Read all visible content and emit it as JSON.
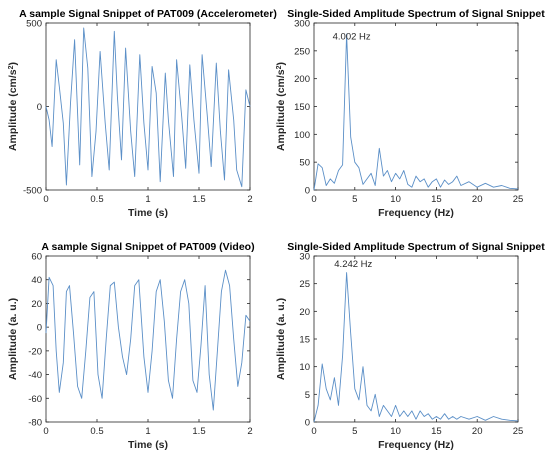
{
  "colors": {
    "line": "#5b8fc7",
    "axis": "#262626"
  },
  "chart_data": [
    {
      "type": "line",
      "title": "A sample Signal Snippet of PAT009 (Accelerometer)",
      "xlabel": "Time (s)",
      "ylabel": "Amplitude (cm/s",
      "ylabel_sup": "2",
      "ylabel_tail": ")",
      "xlim": [
        0,
        2
      ],
      "ylim": [
        -500,
        500
      ],
      "xticks": [
        0,
        0.5,
        1,
        1.5,
        2
      ],
      "xtick_labels": [
        "0",
        "0.5",
        "1",
        "1.5",
        "2"
      ],
      "yticks": [
        -500,
        0,
        500
      ],
      "ytick_labels": [
        "-500",
        "0",
        "500"
      ],
      "series": [
        {
          "x": [
            0,
            0.03,
            0.06,
            0.1,
            0.13,
            0.17,
            0.2,
            0.24,
            0.28,
            0.33,
            0.37,
            0.41,
            0.45,
            0.49,
            0.53,
            0.58,
            0.62,
            0.67,
            0.7,
            0.74,
            0.78,
            0.83,
            0.87,
            0.92,
            0.96,
            1.0,
            1.04,
            1.08,
            1.12,
            1.17,
            1.2,
            1.25,
            1.28,
            1.33,
            1.37,
            1.41,
            1.45,
            1.5,
            1.53,
            1.58,
            1.62,
            1.67,
            1.71,
            1.75,
            1.79,
            1.84,
            1.87,
            1.92,
            1.96,
            2.0
          ],
          "y": [
            0,
            -80,
            -240,
            280,
            120,
            -100,
            -470,
            20,
            400,
            -350,
            470,
            230,
            -420,
            -150,
            330,
            -100,
            -380,
            450,
            60,
            -320,
            350,
            -150,
            -420,
            310,
            -100,
            -380,
            240,
            80,
            -450,
            200,
            -80,
            -420,
            280,
            -60,
            -370,
            250,
            -80,
            -400,
            310,
            -50,
            -360,
            260,
            -150,
            -440,
            220,
            -80,
            -380,
            -480,
            100,
            0
          ]
        }
      ]
    },
    {
      "type": "line",
      "title": "Single-Sided Amplitude Spectrum of Signal Snippet",
      "xlabel": "Frequency (Hz)",
      "ylabel": "Amplitude (cm/s",
      "ylabel_sup": "2",
      "ylabel_tail": ")",
      "xlim": [
        0,
        25
      ],
      "ylim": [
        0,
        300
      ],
      "xticks": [
        0,
        5,
        10,
        15,
        20,
        25
      ],
      "xtick_labels": [
        "0",
        "5",
        "10",
        "15",
        "20",
        "25"
      ],
      "yticks": [
        0,
        50,
        100,
        150,
        200,
        250,
        300
      ],
      "ytick_labels": [
        "0",
        "50",
        "100",
        "150",
        "200",
        "250",
        "300"
      ],
      "annotation": {
        "text": "4.002 Hz",
        "x": 4.0,
        "y": 265
      },
      "series": [
        {
          "x": [
            0,
            0.5,
            1,
            1.5,
            2,
            2.5,
            3,
            3.5,
            4,
            4.5,
            5,
            5.5,
            6,
            6.5,
            7,
            7.5,
            8,
            8.5,
            9,
            9.5,
            10,
            10.5,
            11,
            11.5,
            12,
            12.5,
            13,
            13.5,
            14,
            14.5,
            15,
            15.5,
            16,
            16.5,
            17,
            17.5,
            18,
            19,
            20,
            21,
            22,
            23,
            24,
            25
          ],
          "y": [
            0,
            47,
            40,
            8,
            20,
            12,
            35,
            45,
            280,
            95,
            50,
            40,
            10,
            20,
            30,
            8,
            75,
            25,
            35,
            15,
            30,
            20,
            35,
            10,
            5,
            25,
            15,
            20,
            5,
            15,
            20,
            5,
            18,
            10,
            15,
            25,
            8,
            15,
            5,
            12,
            5,
            8,
            3,
            2
          ]
        }
      ]
    },
    {
      "type": "line",
      "title": "A sample Signal Snippet of PAT009 (Video)",
      "xlabel": "Time (s)",
      "ylabel": "Amplitude (a. u.)",
      "xlim": [
        0,
        2
      ],
      "ylim": [
        -80,
        60
      ],
      "xticks": [
        0,
        0.5,
        1,
        1.5,
        2
      ],
      "xtick_labels": [
        "0",
        "0.5",
        "1",
        "1.5",
        "2"
      ],
      "yticks": [
        -80,
        -60,
        -40,
        -20,
        0,
        20,
        40,
        60
      ],
      "ytick_labels": [
        "-80",
        "-60",
        "-40",
        "-20",
        "0",
        "20",
        "40",
        "60"
      ],
      "series": [
        {
          "x": [
            0,
            0.03,
            0.07,
            0.1,
            0.13,
            0.17,
            0.2,
            0.23,
            0.27,
            0.31,
            0.35,
            0.39,
            0.43,
            0.47,
            0.51,
            0.55,
            0.59,
            0.63,
            0.67,
            0.71,
            0.75,
            0.79,
            0.83,
            0.87,
            0.91,
            0.96,
            1.0,
            1.04,
            1.08,
            1.12,
            1.16,
            1.2,
            1.24,
            1.28,
            1.32,
            1.36,
            1.4,
            1.44,
            1.48,
            1.52,
            1.56,
            1.6,
            1.64,
            1.68,
            1.72,
            1.76,
            1.8,
            1.84,
            1.88,
            1.92,
            1.96,
            2.0
          ],
          "y": [
            -5,
            42,
            35,
            -20,
            -55,
            -30,
            30,
            35,
            -5,
            -50,
            -60,
            -20,
            25,
            30,
            -40,
            -60,
            -10,
            35,
            38,
            0,
            -25,
            -40,
            -10,
            35,
            40,
            -25,
            -55,
            -20,
            30,
            40,
            5,
            -45,
            -60,
            -10,
            30,
            40,
            20,
            -45,
            -55,
            -15,
            35,
            -40,
            -70,
            -20,
            30,
            48,
            35,
            -10,
            -50,
            -30,
            10,
            5
          ]
        }
      ]
    },
    {
      "type": "line",
      "title": "Single-Sided Amplitude Spectrum of Signal Snippet",
      "xlabel": "Frequency (Hz)",
      "ylabel": "Amplitude (a. u.)",
      "xlim": [
        0,
        25
      ],
      "ylim": [
        0,
        30
      ],
      "xticks": [
        0,
        5,
        10,
        15,
        20,
        25
      ],
      "xtick_labels": [
        "0",
        "5",
        "10",
        "15",
        "20",
        "25"
      ],
      "yticks": [
        0,
        5,
        10,
        15,
        20,
        25,
        30
      ],
      "ytick_labels": [
        "0",
        "5",
        "10",
        "15",
        "20",
        "25",
        "30"
      ],
      "annotation": {
        "text": "4.242 Hz",
        "x": 4.2,
        "y": 27.5
      },
      "series": [
        {
          "x": [
            0,
            0.5,
            1,
            1.5,
            2,
            2.5,
            3,
            3.5,
            4,
            4.5,
            5,
            5.5,
            6,
            6.5,
            7,
            7.5,
            8,
            8.5,
            9,
            9.5,
            10,
            10.5,
            11,
            11.5,
            12,
            12.5,
            13,
            13.5,
            14,
            14.5,
            15,
            15.5,
            16,
            16.5,
            17,
            17.5,
            18,
            19,
            20,
            21,
            22,
            23,
            24,
            25
          ],
          "y": [
            0,
            3,
            10.5,
            6,
            4,
            8,
            3,
            12,
            27,
            16,
            6,
            4,
            10,
            3,
            2,
            5,
            1,
            3,
            2,
            1,
            3,
            1,
            2,
            1,
            2,
            0.5,
            2,
            1,
            1.5,
            0.5,
            1,
            0.5,
            1.5,
            0.5,
            1,
            0.5,
            1,
            0.5,
            1,
            0.3,
            1,
            0.5,
            0.3,
            0.2
          ]
        }
      ]
    }
  ]
}
